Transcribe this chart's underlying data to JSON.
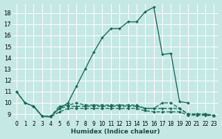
{
  "xlabel": "Humidex (Indice chaleur)",
  "bg_color": "#c5e8e4",
  "grid_color": "#ffffff",
  "line_color": "#1a6b5a",
  "ylim": [
    8.5,
    18.8
  ],
  "xlim": [
    -0.5,
    23.5
  ],
  "yticks": [
    9,
    10,
    11,
    12,
    13,
    14,
    15,
    16,
    17,
    18
  ],
  "xticks": [
    0,
    1,
    2,
    3,
    4,
    5,
    6,
    7,
    8,
    9,
    10,
    11,
    12,
    13,
    14,
    15,
    16,
    17,
    18,
    19,
    20,
    21,
    22,
    23
  ],
  "series": [
    {
      "x": [
        0,
        1,
        2,
        3,
        4,
        5,
        6,
        7,
        8,
        9,
        10,
        11,
        12,
        13,
        14,
        15,
        16,
        17,
        18,
        19,
        20,
        21,
        22,
        23
      ],
      "y": [
        11.0,
        10.0,
        9.7,
        8.8,
        8.8,
        9.5,
        10.0,
        11.5,
        13.0,
        14.5,
        15.8,
        16.6,
        16.6,
        17.2,
        17.2,
        18.1,
        18.5,
        14.3,
        14.4,
        10.1,
        10.0,
        null,
        null,
        null
      ],
      "dashed": false
    },
    {
      "x": [
        2,
        3,
        4,
        5,
        6,
        7,
        8,
        9,
        10,
        11,
        12,
        13,
        14,
        15,
        16,
        17,
        18,
        19,
        20,
        21,
        22,
        23
      ],
      "y": [
        9.7,
        8.8,
        8.8,
        9.5,
        9.7,
        9.7,
        9.7,
        9.7,
        9.7,
        9.7,
        9.7,
        9.7,
        9.7,
        9.5,
        9.5,
        9.5,
        9.5,
        9.5,
        9.0,
        9.0,
        9.0,
        8.9
      ],
      "dashed": true
    },
    {
      "x": [
        2,
        3,
        4,
        5,
        6,
        7,
        8,
        9,
        10,
        11,
        12,
        13,
        14,
        15,
        16,
        17,
        18,
        19,
        20,
        21,
        22,
        23
      ],
      "y": [
        9.7,
        8.8,
        8.8,
        9.7,
        9.8,
        10.0,
        9.8,
        9.8,
        9.8,
        9.8,
        9.8,
        9.8,
        9.8,
        9.5,
        9.5,
        10.0,
        10.0,
        9.5,
        9.0,
        9.0,
        9.0,
        8.9
      ],
      "dashed": true
    },
    {
      "x": [
        0,
        1,
        2,
        3,
        4,
        5,
        6,
        7,
        8,
        9,
        10,
        11,
        12,
        13,
        14,
        15,
        16,
        17,
        18,
        19,
        20,
        21,
        22,
        23
      ],
      "y": [
        11.0,
        10.0,
        9.7,
        8.8,
        8.75,
        9.2,
        9.5,
        9.5,
        9.5,
        9.5,
        9.5,
        9.5,
        9.5,
        9.5,
        9.5,
        9.3,
        9.2,
        9.2,
        9.2,
        9.2,
        8.9,
        8.9,
        8.9,
        8.85
      ],
      "dashed": true
    }
  ]
}
